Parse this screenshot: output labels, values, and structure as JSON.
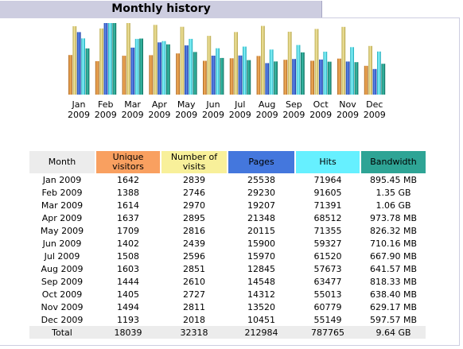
{
  "header": {
    "title": "Monthly history"
  },
  "colors": {
    "unique_visitors": "#f9a060",
    "visits": "#f8f09a",
    "pages": "#4477dd",
    "hits": "#66f0ff",
    "bandwidth": "#2ea495",
    "month_header": "#ececec"
  },
  "chart_data": {
    "type": "bar",
    "categories": [
      "Jan 2009",
      "Feb 2009",
      "Mar 2009",
      "Apr 2009",
      "May 2009",
      "Jun 2009",
      "Jul 2009",
      "Aug 2009",
      "Sep 2009",
      "Oct 2009",
      "Nov 2009",
      "Dec 2009"
    ],
    "month_labels": [
      [
        "Jan",
        "2009"
      ],
      [
        "Feb",
        "2009"
      ],
      [
        "Mar",
        "2009"
      ],
      [
        "Apr",
        "2009"
      ],
      [
        "May",
        "2009"
      ],
      [
        "Jun",
        "2009"
      ],
      [
        "Jul",
        "2009"
      ],
      [
        "Aug",
        "2009"
      ],
      [
        "Sep",
        "2009"
      ],
      [
        "Oct",
        "2009"
      ],
      [
        "Nov",
        "2009"
      ],
      [
        "Dec",
        "2009"
      ]
    ],
    "series": [
      {
        "name": "Unique visitors",
        "values": [
          1642,
          1388,
          1614,
          1637,
          1709,
          1402,
          1508,
          1603,
          1444,
          1405,
          1494,
          1193
        ]
      },
      {
        "name": "Number of visits",
        "values": [
          2839,
          2746,
          2970,
          2895,
          2816,
          2439,
          2596,
          2851,
          2610,
          2727,
          2811,
          2018
        ]
      },
      {
        "name": "Pages",
        "values": [
          25538,
          29230,
          19207,
          21348,
          20115,
          15900,
          15970,
          12845,
          14548,
          14312,
          13520,
          10451
        ]
      },
      {
        "name": "Hits",
        "values": [
          71964,
          91605,
          71391,
          68512,
          71355,
          59327,
          61520,
          57673,
          63477,
          55013,
          60779,
          55149
        ]
      },
      {
        "name": "Bandwidth",
        "values": [
          895.45,
          1386.24,
          1085.44,
          973.78,
          826.32,
          710.16,
          667.9,
          641.57,
          818.33,
          638.4,
          629.17,
          597.57
        ],
        "unit": "MB"
      }
    ]
  },
  "table": {
    "headers": {
      "month": "Month",
      "unique_visitors": [
        "Unique",
        "visitors"
      ],
      "visits": [
        "Number of",
        "visits"
      ],
      "pages": "Pages",
      "hits": "Hits",
      "bandwidth": "Bandwidth"
    },
    "rows": [
      [
        "Jan 2009",
        "1642",
        "2839",
        "25538",
        "71964",
        "895.45 MB"
      ],
      [
        "Feb 2009",
        "1388",
        "2746",
        "29230",
        "91605",
        "1.35 GB"
      ],
      [
        "Mar 2009",
        "1614",
        "2970",
        "19207",
        "71391",
        "1.06 GB"
      ],
      [
        "Apr 2009",
        "1637",
        "2895",
        "21348",
        "68512",
        "973.78 MB"
      ],
      [
        "May 2009",
        "1709",
        "2816",
        "20115",
        "71355",
        "826.32 MB"
      ],
      [
        "Jun 2009",
        "1402",
        "2439",
        "15900",
        "59327",
        "710.16 MB"
      ],
      [
        "Jul 2009",
        "1508",
        "2596",
        "15970",
        "61520",
        "667.90 MB"
      ],
      [
        "Aug 2009",
        "1603",
        "2851",
        "12845",
        "57673",
        "641.57 MB"
      ],
      [
        "Sep 2009",
        "1444",
        "2610",
        "14548",
        "63477",
        "818.33 MB"
      ],
      [
        "Oct 2009",
        "1405",
        "2727",
        "14312",
        "55013",
        "638.40 MB"
      ],
      [
        "Nov 2009",
        "1494",
        "2811",
        "13520",
        "60779",
        "629.17 MB"
      ],
      [
        "Dec 2009",
        "1193",
        "2018",
        "10451",
        "55149",
        "597.57 MB"
      ]
    ],
    "total": [
      "Total",
      "18039",
      "32318",
      "212984",
      "787765",
      "9.64 GB"
    ]
  }
}
